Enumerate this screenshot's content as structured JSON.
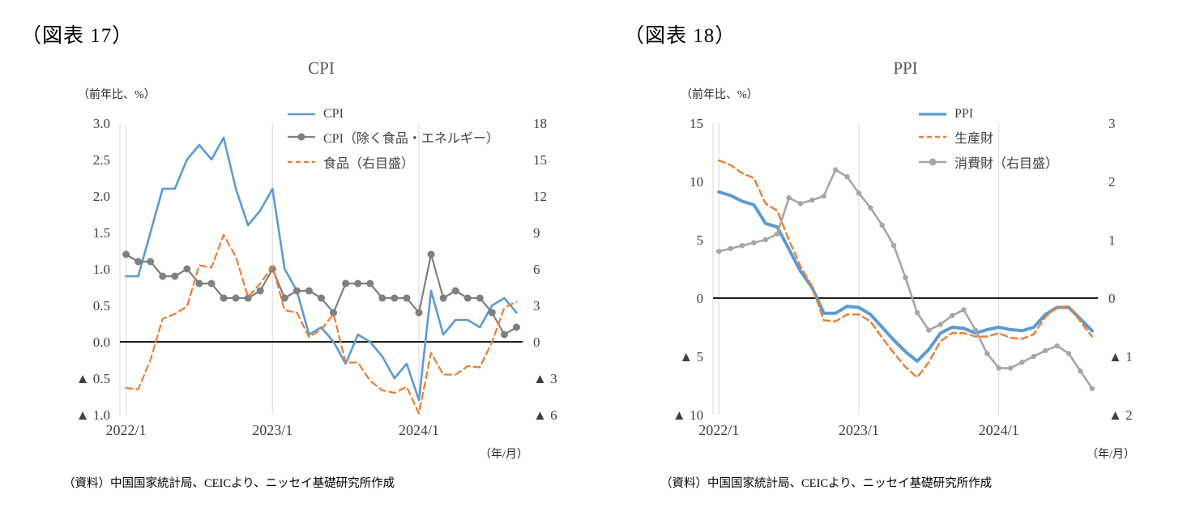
{
  "chart_data": [
    {
      "type": "line",
      "caption": "（図表 17）",
      "title": "CPI",
      "unit_label": "（前年比、%）",
      "x_unit_label": "（年/月）",
      "source": "（資料）中国国家統計局、CEICより、ニッセイ基礎研究所作成",
      "legend_position": "top-right",
      "grid": {
        "vertical": true,
        "horizontal": false,
        "zero_line": true
      },
      "x_months": [
        "2022/1",
        "2022/2",
        "2022/3",
        "2022/4",
        "2022/5",
        "2022/6",
        "2022/7",
        "2022/8",
        "2022/9",
        "2022/10",
        "2022/11",
        "2022/12",
        "2023/1",
        "2023/2",
        "2023/3",
        "2023/4",
        "2023/5",
        "2023/6",
        "2023/7",
        "2023/8",
        "2023/9",
        "2023/10",
        "2023/11",
        "2023/12",
        "2024/1",
        "2024/2",
        "2024/3",
        "2024/4",
        "2024/5",
        "2024/6",
        "2024/7",
        "2024/8",
        "2024/9"
      ],
      "x_tick_labels": [
        "2022/1",
        "2023/1",
        "2024/1"
      ],
      "x_tick_positions": [
        0,
        12,
        24
      ],
      "left_axis": {
        "min": -1.0,
        "max": 3.0,
        "tick_values": [
          3.0,
          2.5,
          2.0,
          1.5,
          1.0,
          0.5,
          0.0,
          -0.5,
          -1.0
        ],
        "tick_labels": [
          "3.0",
          "2.5",
          "2.0",
          "1.5",
          "1.0",
          "0.5",
          "0.0",
          "▲ 0.5",
          "▲ 1.0"
        ]
      },
      "right_axis": {
        "min": -6,
        "max": 18,
        "tick_values": [
          18,
          15,
          12,
          9,
          6,
          3,
          0,
          -3,
          -6
        ],
        "tick_labels": [
          "18",
          "15",
          "12",
          "9",
          "6",
          "3",
          "0",
          "▲ 3",
          "▲ 6"
        ]
      },
      "series": [
        {
          "name": "CPI",
          "axis": "left",
          "color": "#5B9BD5",
          "style": "solid",
          "width": 2.6,
          "markers": false,
          "values": [
            0.9,
            0.9,
            1.5,
            2.1,
            2.1,
            2.5,
            2.7,
            2.5,
            2.8,
            2.1,
            1.6,
            1.8,
            2.1,
            1.0,
            0.7,
            0.1,
            0.2,
            0.0,
            -0.3,
            0.1,
            0.0,
            -0.2,
            -0.5,
            -0.3,
            -0.8,
            0.7,
            0.1,
            0.3,
            0.3,
            0.2,
            0.5,
            0.6,
            0.4
          ]
        },
        {
          "name": "CPI（除く食品・エネルギー）",
          "axis": "left",
          "color": "#7F7F7F",
          "style": "solid",
          "width": 2.2,
          "markers": true,
          "marker_r": 4.5,
          "values": [
            1.2,
            1.1,
            1.1,
            0.9,
            0.9,
            1.0,
            0.8,
            0.8,
            0.6,
            0.6,
            0.6,
            0.7,
            1.0,
            0.6,
            0.7,
            0.7,
            0.6,
            0.4,
            0.8,
            0.8,
            0.8,
            0.6,
            0.6,
            0.6,
            0.4,
            1.2,
            0.6,
            0.7,
            0.6,
            0.6,
            0.4,
            0.1,
            0.2
          ]
        },
        {
          "name": "食品（右目盛）",
          "axis": "right",
          "color": "#ED7D31",
          "style": "dashed",
          "width": 2.2,
          "markers": false,
          "values": [
            -3.8,
            -3.9,
            -1.5,
            1.9,
            2.3,
            2.9,
            6.3,
            6.1,
            8.8,
            7.0,
            3.7,
            4.8,
            6.2,
            2.6,
            2.4,
            0.4,
            1.0,
            2.3,
            -1.7,
            -1.7,
            -3.2,
            -4.0,
            -4.2,
            -3.7,
            -5.9,
            -0.9,
            -2.7,
            -2.7,
            -2.0,
            -2.1,
            0.0,
            2.8,
            3.3
          ]
        }
      ]
    },
    {
      "type": "line",
      "caption": "（図表 18）",
      "title": "PPI",
      "unit_label": "（前年比、%）",
      "x_unit_label": "（年/月）",
      "source": "（資料）中国国家統計局、CEICより、ニッセイ基礎研究所作成",
      "legend_position": "top-right",
      "grid": {
        "vertical": true,
        "horizontal": false,
        "zero_line": true
      },
      "x_months": [
        "2022/1",
        "2022/2",
        "2022/3",
        "2022/4",
        "2022/5",
        "2022/6",
        "2022/7",
        "2022/8",
        "2022/9",
        "2022/10",
        "2022/11",
        "2022/12",
        "2023/1",
        "2023/2",
        "2023/3",
        "2023/4",
        "2023/5",
        "2023/6",
        "2023/7",
        "2023/8",
        "2023/9",
        "2023/10",
        "2023/11",
        "2023/12",
        "2024/1",
        "2024/2",
        "2024/3",
        "2024/4",
        "2024/5",
        "2024/6",
        "2024/7",
        "2024/8",
        "2024/9"
      ],
      "x_tick_labels": [
        "2022/1",
        "2023/1",
        "2024/1"
      ],
      "x_tick_positions": [
        0,
        12,
        24
      ],
      "left_axis": {
        "min": -10,
        "max": 15,
        "tick_values": [
          15,
          10,
          5,
          0,
          -5,
          -10
        ],
        "tick_labels": [
          "15",
          "10",
          "5",
          "0",
          "▲ 5",
          "▲ 10"
        ]
      },
      "right_axis": {
        "min": -2,
        "max": 3,
        "tick_values": [
          3,
          2,
          1,
          0,
          -1,
          -2
        ],
        "tick_labels": [
          "3",
          "2",
          "1",
          "0",
          "▲ 1",
          "▲ 2"
        ]
      },
      "series": [
        {
          "name": "PPI",
          "axis": "left",
          "color": "#5B9BD5",
          "style": "solid",
          "width": 4,
          "markers": false,
          "values": [
            9.1,
            8.8,
            8.3,
            8.0,
            6.4,
            6.1,
            4.2,
            2.3,
            0.9,
            -1.3,
            -1.3,
            -0.7,
            -0.8,
            -1.4,
            -2.5,
            -3.6,
            -4.6,
            -5.4,
            -4.4,
            -3.0,
            -2.5,
            -2.6,
            -3.0,
            -2.7,
            -2.5,
            -2.7,
            -2.8,
            -2.5,
            -1.4,
            -0.8,
            -0.8,
            -1.8,
            -2.8
          ]
        },
        {
          "name": "生産財",
          "axis": "left",
          "color": "#ED7D31",
          "style": "dashed",
          "width": 2.4,
          "markers": false,
          "values": [
            11.8,
            11.4,
            10.7,
            10.3,
            8.1,
            7.5,
            5.0,
            2.7,
            1.0,
            -1.9,
            -2.0,
            -1.4,
            -1.4,
            -2.0,
            -3.4,
            -4.7,
            -5.9,
            -6.8,
            -5.5,
            -3.7,
            -3.0,
            -3.0,
            -3.3,
            -3.3,
            -3.0,
            -3.4,
            -3.5,
            -3.1,
            -1.6,
            -0.8,
            -0.7,
            -2.0,
            -3.3
          ]
        },
        {
          "name": "消費財（右目盛）",
          "axis": "right",
          "color": "#A6A6A6",
          "style": "solid",
          "width": 2.6,
          "markers": true,
          "marker_r": 3.2,
          "values": [
            0.8,
            0.85,
            0.9,
            0.95,
            1.0,
            1.1,
            1.72,
            1.62,
            1.68,
            1.75,
            2.2,
            2.08,
            1.8,
            1.55,
            1.25,
            0.9,
            0.35,
            -0.25,
            -0.55,
            -0.45,
            -0.3,
            -0.2,
            -0.55,
            -0.95,
            -1.2,
            -1.2,
            -1.1,
            -1.0,
            -0.9,
            -0.82,
            -0.95,
            -1.25,
            -1.55
          ]
        }
      ]
    }
  ]
}
